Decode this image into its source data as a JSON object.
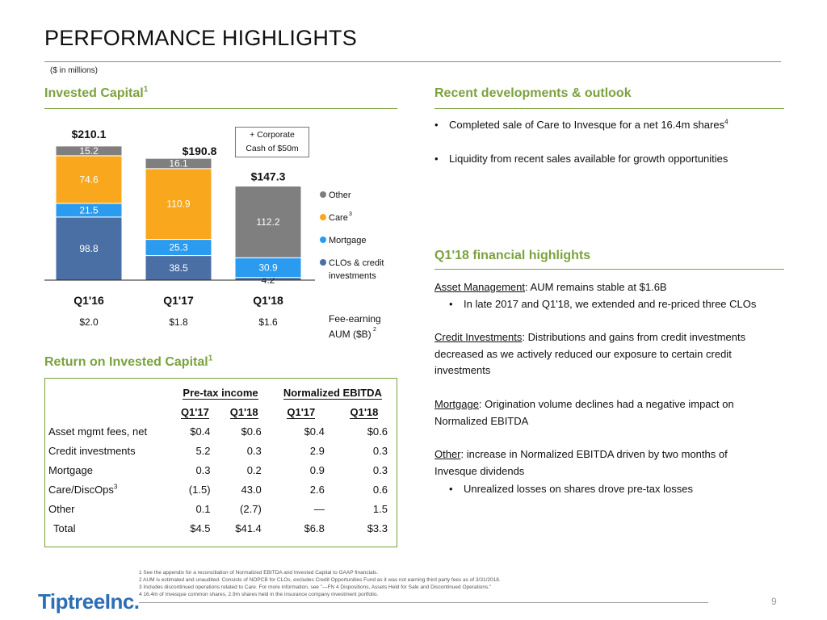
{
  "page": {
    "title": "PERFORMANCE HIGHLIGHTS",
    "units": "($ in millions)",
    "page_number": "9",
    "logo_text": "Tiptree",
    "logo_suffix": "Inc."
  },
  "invested_capital": {
    "heading": "Invested Capital",
    "heading_sup": "1",
    "corporate_note_line1": "+ Corporate",
    "corporate_note_line2": "Cash of $50m"
  },
  "chart_data": {
    "type": "bar",
    "stacked": true,
    "title": "Invested Capital",
    "categories": [
      "Q1'16",
      "Q1'17",
      "Q1'18"
    ],
    "totals": [
      "$210.1",
      "$190.8",
      "$147.3"
    ],
    "series": [
      {
        "name": "CLOs & credit investments",
        "color": "#4a6fa5",
        "values": [
          98.8,
          38.5,
          4.2
        ]
      },
      {
        "name": "Mortgage",
        "color": "#2b9bf0",
        "values": [
          21.5,
          25.3,
          30.9
        ]
      },
      {
        "name": "Care",
        "legend_sup": "3",
        "color": "#f9a81e",
        "values": [
          74.6,
          110.9,
          0
        ]
      },
      {
        "name": "Other",
        "color": "#7f7f7f",
        "values": [
          15.2,
          16.1,
          112.2
        ]
      }
    ],
    "legend_order": [
      "Other",
      "Care",
      "Mortgage",
      "CLOs & credit investments"
    ],
    "legend_placement": "right",
    "fee_earning_label": "Fee-earning AUM ($B)",
    "fee_earning_sup": "2",
    "fee_earning_aum": [
      "$2.0",
      "$1.8",
      "$1.6"
    ],
    "ylim": [
      0,
      215
    ]
  },
  "outlook": {
    "heading": "Recent developments & outlook",
    "bullets": [
      {
        "text": "Completed sale of Care to Invesque for a net 16.4m shares",
        "sup": "4"
      },
      {
        "text": "Liquidity from recent sales available for growth opportunities",
        "sup": ""
      }
    ]
  },
  "financial_highlights": {
    "heading": "Q1'18 financial highlights",
    "asset_mgmt_label": "Asset Management",
    "asset_mgmt_text": ": AUM remains stable at $1.6B",
    "asset_mgmt_bullet": "In late 2017 and Q1'18, we extended and re-priced three CLOs",
    "credit_label": "Credit Investments",
    "credit_text1": ": Distributions and gains from credit investments",
    "credit_text2": "decreased as we actively reduced our exposure to certain credit",
    "credit_text3": "investments",
    "mortgage_label": "Mortgage",
    "mortgage_text1": ": Origination volume declines had a negative impact on",
    "mortgage_text2": "Normalized EBITDA",
    "other_label": "Other",
    "other_text1": ": increase in Normalized EBITDA driven by two months of",
    "other_text2": "Invesque dividends",
    "other_bullet": "Unrealized losses on shares drove pre-tax losses"
  },
  "roic": {
    "heading": "Return on Invested Capital",
    "heading_sup": "1",
    "group_headers": [
      "Pre-tax income",
      "Normalized EBITDA"
    ],
    "sub_headers": [
      "Q1'17",
      "Q1'18",
      "Q1'17",
      "Q1'18"
    ],
    "rows": [
      {
        "label": "Asset mgmt fees, net",
        "sup": "",
        "values": [
          "$0.4",
          "$0.6",
          "$0.4",
          "$0.6"
        ]
      },
      {
        "label": "Credit investments",
        "sup": "",
        "values": [
          "5.2",
          "0.3",
          "2.9",
          "0.3"
        ]
      },
      {
        "label": "Mortgage",
        "sup": "",
        "values": [
          "0.3",
          "0.2",
          "0.9",
          "0.3"
        ]
      },
      {
        "label": "Care/DiscOps",
        "sup": "3",
        "values": [
          "(1.5)",
          "43.0",
          "2.6",
          "0.6"
        ]
      },
      {
        "label": "Other",
        "sup": "",
        "values": [
          "0.1",
          "(2.7)",
          "—",
          "1.5"
        ]
      },
      {
        "label": "Total",
        "sup": "",
        "values": [
          "$4.5",
          "$41.4",
          "$6.8",
          "$3.3"
        ]
      }
    ]
  },
  "footnotes": [
    "1 See the appendix for a reconciliation of Normalized EBITDA and Invested Capital  to GAAP financials.",
    "2 AUM is estimated and unaudited. Consists of NOPCB for CLOs, excludes Credit Opportunities Fund as it was not earning third party fees as of 3/31/2018.",
    "3 Includes discontinued operations related to Care. For more information, see \"—FN 4 Dispositions, Assets Held for Sale and Discontinued Operations.\"",
    "4 16.4m of Invesque common shares, 2.9m shares held in the insurance company investment portfolio."
  ]
}
